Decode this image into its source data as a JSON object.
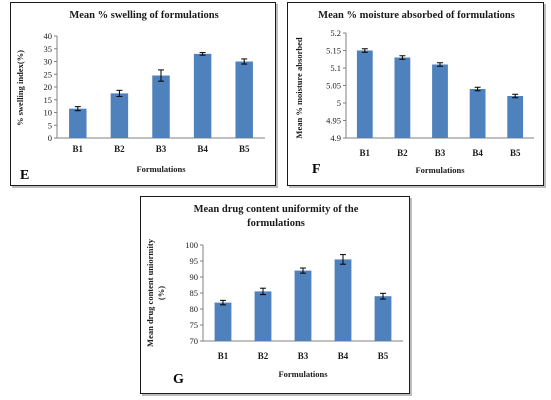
{
  "chart_data": [
    {
      "id": "E",
      "type": "bar",
      "title": [
        "Mean % swelling of formulations"
      ],
      "categories": [
        "B1",
        "B2",
        "B3",
        "B4",
        "B5"
      ],
      "values": [
        11.5,
        17.5,
        24.5,
        33,
        30
      ],
      "errors": [
        0.8,
        1.2,
        2.2,
        0.5,
        1.0
      ],
      "ylim": [
        0,
        40
      ],
      "yticks": [
        0,
        5,
        10,
        15,
        20,
        25,
        30,
        35,
        40
      ],
      "ytick_labels": [
        "0",
        "5",
        "10",
        "15",
        "20",
        "25",
        "30",
        "35",
        "40"
      ],
      "ylabel": [
        "% swelling index(%)"
      ],
      "xlabel": "Formulations",
      "panel_label": "E",
      "bar_color": "#4f81bd"
    },
    {
      "id": "F",
      "type": "bar",
      "title": [
        "Mean % moisture absorbed of formulations"
      ],
      "categories": [
        "B1",
        "B2",
        "B3",
        "B4",
        "B5"
      ],
      "values": [
        5.15,
        5.13,
        5.11,
        5.04,
        5.02
      ],
      "errors": [
        0.005,
        0.005,
        0.005,
        0.005,
        0.005
      ],
      "ylim": [
        4.9,
        5.2
      ],
      "yticks": [
        4.9,
        4.95,
        5.0,
        5.05,
        5.1,
        5.15,
        5.2
      ],
      "ytick_labels": [
        "4.9",
        "4.95",
        "5",
        "5.05",
        "5.1",
        "5.15",
        "5.2"
      ],
      "ylabel": [
        "Mean % moisture absorbed"
      ],
      "xlabel": "Formulations",
      "panel_label": "F",
      "bar_color": "#4f81bd"
    },
    {
      "id": "G",
      "type": "bar",
      "title": [
        "Mean drug content uniformity of the",
        "formulations"
      ],
      "categories": [
        "B1",
        "B2",
        "B3",
        "B4",
        "B5"
      ],
      "values": [
        82,
        85.5,
        92,
        95.5,
        84
      ],
      "errors": [
        0.7,
        1.0,
        0.8,
        1.5,
        0.9
      ],
      "ylim": [
        70,
        100
      ],
      "yticks": [
        70,
        75,
        80,
        85,
        90,
        95,
        100
      ],
      "ytick_labels": [
        "70",
        "75",
        "80",
        "85",
        "90",
        "95",
        "100"
      ],
      "ylabel": [
        "Mean drug content uniormity",
        "(%)"
      ],
      "xlabel": "Formulations",
      "panel_label": "G",
      "bar_color": "#4f81bd"
    }
  ]
}
